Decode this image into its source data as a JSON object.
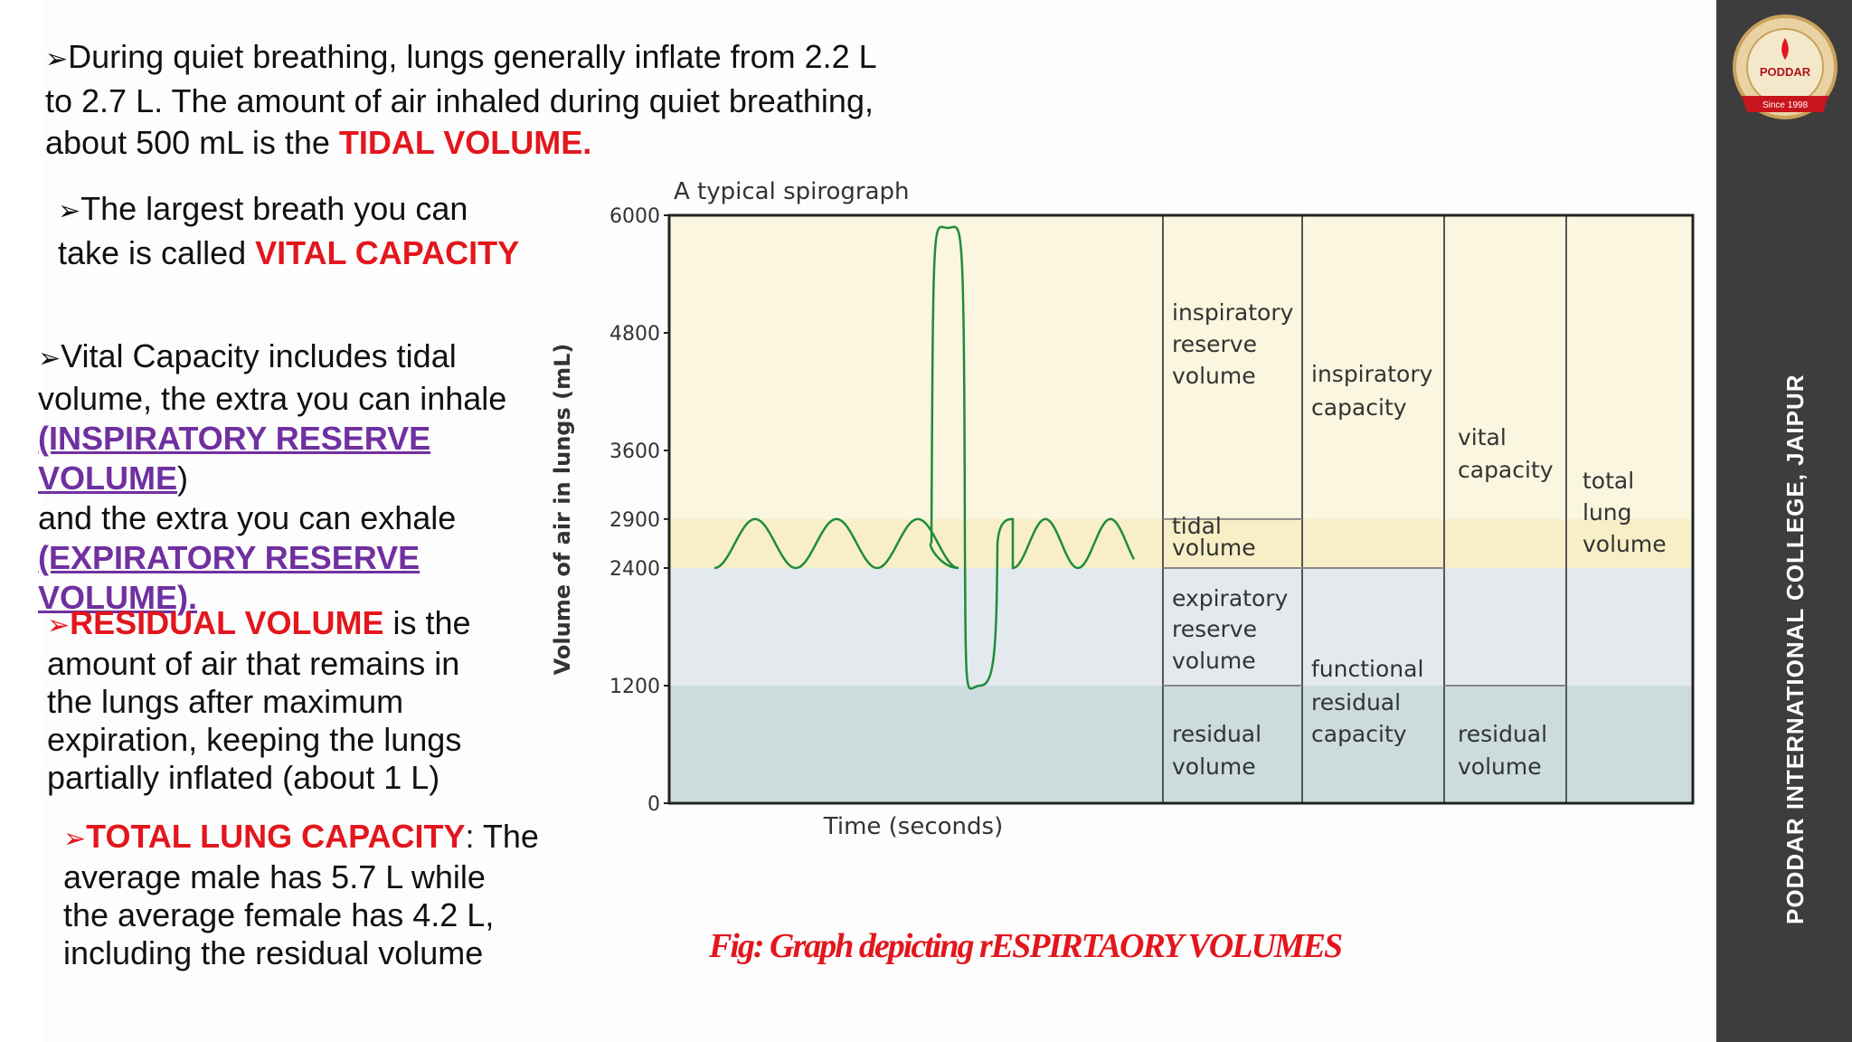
{
  "text": {
    "p1": {
      "bullet": "➢",
      "line1": "During quiet breathing, lungs generally inflate from 2.2 L",
      "line2": "to 2.7 L. The amount of air inhaled during quiet breathing,",
      "line3": "about 500 mL is the ",
      "highlight": "TIDAL VOLUME."
    },
    "p2": {
      "bullet": "➢",
      "line1": "The largest breath you can",
      "line2": "take is called ",
      "highlight": "VITAL CAPACITY"
    },
    "p3": {
      "bullet": "➢",
      "line1": "Vital Capacity includes tidal",
      "line2": "volume, the extra you can inhale",
      "link1": "(INSPIRATORY RESERVE VOLUME",
      "after_link1": ")",
      "line4": "and the extra you can exhale",
      "link2": "(EXPIRATORY RESERVE VOLUME)."
    },
    "p4": {
      "bullet": "➢",
      "highlight": "RESIDUAL VOLUME",
      "line1_rest": " is the",
      "line2": "amount of air that remains in",
      "line3": "the lungs after maximum",
      "line4": "expiration, keeping the lungs",
      "line5": "partially inflated (about 1 L)"
    },
    "p5": {
      "bullet": "➢",
      "highlight": "TOTAL LUNG CAPACITY",
      "line1_rest": ": The",
      "line2": "average male has 5.7 L while",
      "line3": "the average female has 4.2 L,",
      "line4": "including the residual volume"
    }
  },
  "figure": {
    "title": "A typical spirograph",
    "ylabel": "Volume of air in lungs (mL)",
    "xlabel": "Time (seconds)",
    "caption": "Fig: Graph depicting rESPIRTAORY VOLUMES",
    "ticks": [
      "6000",
      "4800",
      "3600",
      "2900",
      "2400",
      "1200",
      "0"
    ],
    "tick_values": [
      6000,
      4800,
      3600,
      2900,
      2400,
      1200,
      0
    ],
    "levels": {
      "max": 6000,
      "irv_top": 6000,
      "tidal_top": 2900,
      "tidal_bottom": 2400,
      "rv_top": 1200
    },
    "colors": {
      "irv_band": "#fbf6df",
      "tidal_band": "#f8efc6",
      "erv_band": "#e4e9ee",
      "rv_band": "#ccdcdc",
      "trace": "#1f8c3c",
      "caption": "#e3161d"
    },
    "columns": {
      "col1": {
        "irv": [
          "inspiratory",
          "reserve",
          "volume"
        ],
        "tidal": [
          "tidal",
          "volume"
        ],
        "erv": [
          "expiratory",
          "reserve",
          "volume"
        ],
        "rv": [
          "residual",
          "volume"
        ]
      },
      "col2": {
        "ic": [
          "inspiratory",
          "capacity"
        ],
        "frc": [
          "functional",
          "residual",
          "capacity"
        ]
      },
      "col3": {
        "vc": [
          "vital",
          "capacity"
        ],
        "rv": [
          "residual",
          "volume"
        ]
      },
      "col4": {
        "tlc": [
          "total",
          "lung",
          "volume"
        ]
      }
    }
  },
  "branding": {
    "college": "PODDAR INTERNATIONAL COLLEGE, JAIPUR",
    "logo_text": "PODDAR",
    "logo_since": "Since 1998"
  }
}
